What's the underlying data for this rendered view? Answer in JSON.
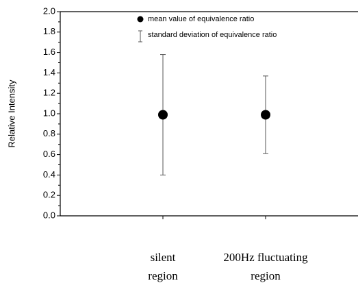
{
  "chart_data": {
    "type": "errorbar",
    "y_label": "Relative Intensity",
    "categories": [
      [
        "silent",
        "region"
      ],
      [
        "200Hz fluctuating",
        "region"
      ]
    ],
    "series": [
      {
        "name": "mean value of equivalence ratio",
        "color": "#000000",
        "values": [
          0.99,
          0.99
        ],
        "error_name": "standard deviation of equivalence ratio",
        "error_color": "#555555",
        "errors": [
          0.59,
          0.38
        ]
      }
    ],
    "ylim": [
      0,
      2
    ],
    "yticks": [
      {
        "value": 0,
        "label": "0.0"
      },
      {
        "value": 0.2,
        "label": "0.2"
      },
      {
        "value": 0.4,
        "label": "0.4"
      },
      {
        "value": 0.6,
        "label": "0.6"
      },
      {
        "value": 0.8,
        "label": "0.8"
      },
      {
        "value": 1,
        "label": "1.0"
      },
      {
        "value": 1.2,
        "label": "1.2"
      },
      {
        "value": 1.4,
        "label": "1.4"
      },
      {
        "value": 1.6,
        "label": "1.6"
      },
      {
        "value": 1.8,
        "label": "1.8"
      },
      {
        "value": 2,
        "label": "2.0"
      }
    ],
    "y_minor_ticks": [
      0.1,
      0.3,
      0.5,
      0.7,
      0.9,
      1.1,
      1.3,
      1.5,
      1.7,
      1.9
    ]
  }
}
